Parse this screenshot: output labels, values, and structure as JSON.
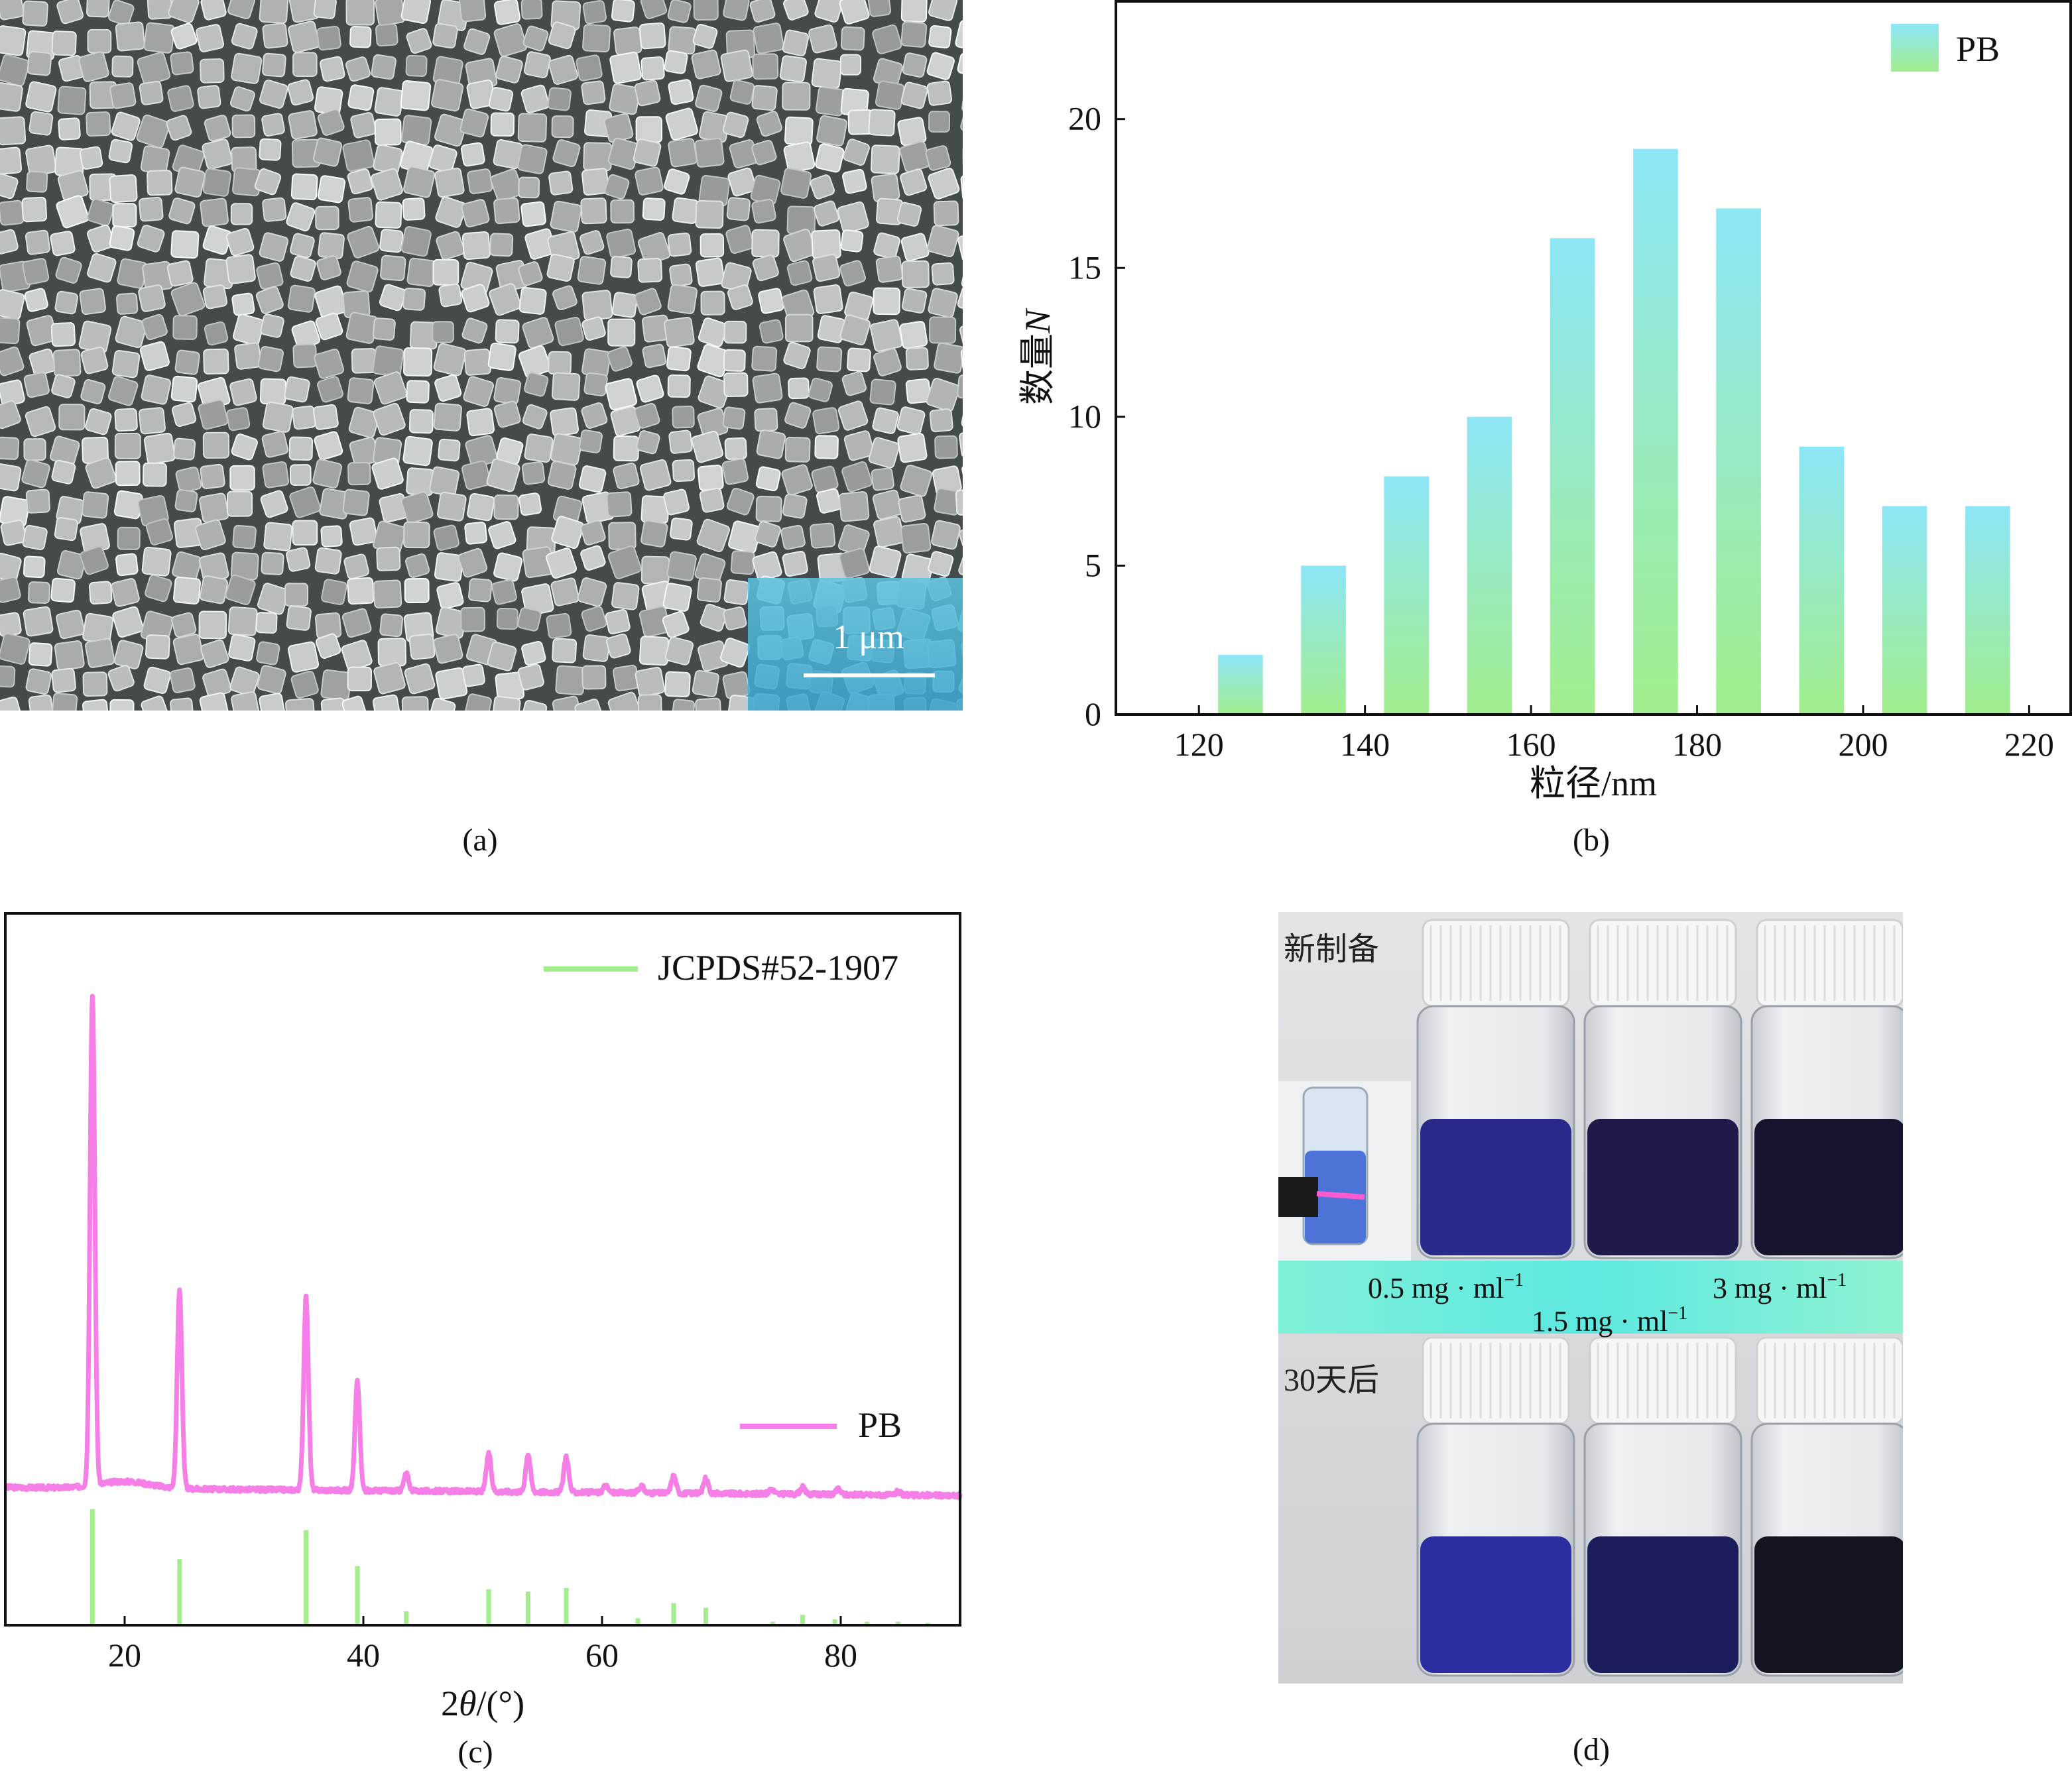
{
  "figure": {
    "panels": [
      {
        "id": "a",
        "caption": "(a)",
        "scale_bar_label": "1 μm"
      },
      {
        "id": "b",
        "caption": "(b)"
      },
      {
        "id": "c",
        "caption": "(c)"
      },
      {
        "id": "d",
        "caption": "(d)",
        "labels": {
          "fresh": "新制备",
          "after": "30天后"
        },
        "concentrations": [
          {
            "value": "0.5",
            "unit": "mg · ml",
            "sup": "−1"
          },
          {
            "value": "1.5",
            "unit": "mg · ml",
            "sup": "−1"
          },
          {
            "value": "3",
            "unit": "mg · ml",
            "sup": "−1"
          }
        ],
        "colors": {
          "fresh": [
            "#2a2a8a",
            "#1e1a4a",
            "#16142e"
          ],
          "after": [
            "#2b2ea0",
            "#1c1d5c",
            "#151522"
          ]
        }
      }
    ]
  },
  "chart_data": [
    {
      "type": "bar",
      "panel": "b",
      "x": [
        125,
        135,
        145,
        155,
        165,
        175,
        185,
        195,
        205,
        215
      ],
      "values": [
        2,
        5,
        8,
        10,
        16,
        19,
        17,
        9,
        7,
        7
      ],
      "xlabel": "粒径/nm",
      "ylabel_text": "数量",
      "ylabel_var": "N",
      "xlim": [
        110,
        225
      ],
      "ylim": [
        0,
        24
      ],
      "xticks": [
        120,
        140,
        160,
        180,
        200,
        220
      ],
      "yticks": [
        0,
        5,
        10,
        15,
        20
      ],
      "legend": {
        "label": "PB",
        "position": "top-right"
      },
      "colors": {
        "top": "#8de6f7",
        "bottom": "#a2ee8d"
      }
    },
    {
      "type": "line",
      "panel": "c",
      "xlabel_prefix": "2",
      "xlabel_var": "θ",
      "xlabel_suffix": "/(°)",
      "xlim": [
        10,
        90
      ],
      "xticks": [
        20,
        40,
        60,
        80
      ],
      "series": [
        {
          "name": "PB",
          "color": "#f57fe6",
          "baseline": 1.0,
          "peaks": [
            [
              17.3,
              28.5
            ],
            [
              24.6,
              11.5
            ],
            [
              35.2,
              11.2
            ],
            [
              39.5,
              6.3
            ],
            [
              43.6,
              1.0
            ],
            [
              50.5,
              2.2
            ],
            [
              53.8,
              2.2
            ],
            [
              57.0,
              2.1
            ],
            [
              60.3,
              0.4
            ],
            [
              63.3,
              0.4
            ],
            [
              66.0,
              1.0
            ],
            [
              68.7,
              0.9
            ],
            [
              74.2,
              0.3
            ],
            [
              76.8,
              0.4
            ],
            [
              79.8,
              0.3
            ],
            [
              84.8,
              0.2
            ]
          ]
        },
        {
          "name": "JCPDS#52-1907",
          "color": "#a2ee8d",
          "sticks": [
            [
              17.3,
              100
            ],
            [
              24.6,
              57
            ],
            [
              35.2,
              82
            ],
            [
              39.5,
              51
            ],
            [
              43.6,
              12
            ],
            [
              50.5,
              31
            ],
            [
              53.8,
              29
            ],
            [
              57.0,
              32
            ],
            [
              63.0,
              6
            ],
            [
              66.0,
              19
            ],
            [
              68.7,
              15
            ],
            [
              74.3,
              3
            ],
            [
              76.8,
              9
            ],
            [
              79.5,
              5
            ],
            [
              82.2,
              3
            ],
            [
              84.8,
              3
            ],
            [
              87.3,
              2
            ]
          ]
        }
      ],
      "legend_positions": {
        "JCPDS#52-1907": "top-right",
        "PB": "middle-right"
      }
    }
  ]
}
